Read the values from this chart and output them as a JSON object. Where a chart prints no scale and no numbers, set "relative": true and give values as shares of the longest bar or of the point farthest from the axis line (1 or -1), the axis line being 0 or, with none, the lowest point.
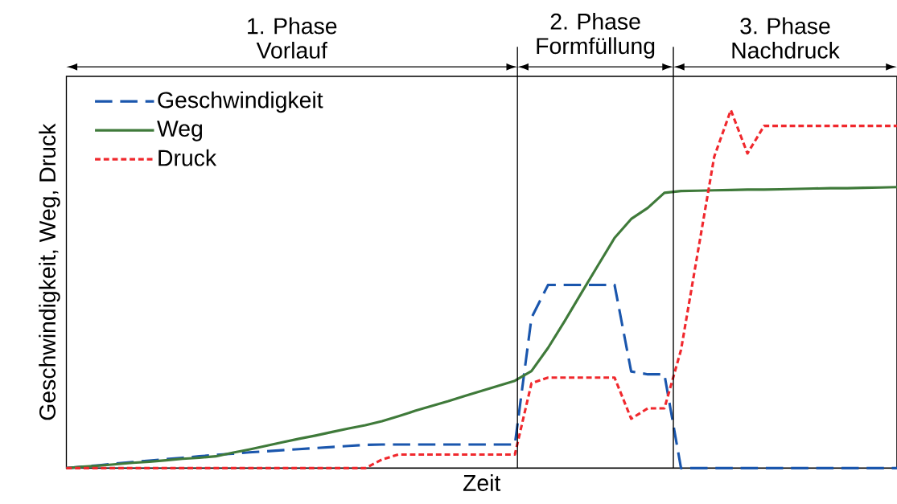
{
  "chart_data": {
    "type": "line",
    "relative": true,
    "xlabel": "Zeit",
    "ylabel": "Geschwindigkeit, Weg, Druck",
    "categories": [
      null,
      null,
      null,
      null,
      null,
      null,
      null,
      null,
      null,
      null,
      null,
      null,
      null,
      null,
      null,
      null,
      null,
      null,
      null,
      null,
      null,
      null,
      null,
      null,
      null,
      null,
      null,
      null,
      null,
      null,
      null,
      null,
      null,
      null,
      null,
      null,
      null,
      null,
      null,
      null,
      null,
      null,
      null,
      null,
      null,
      null,
      null,
      null,
      null,
      null,
      null
    ],
    "series": [
      {
        "name": "Geschwindigkeit",
        "color": "#1a56ad",
        "line_style": "dashed",
        "values": [
          0,
          0.004,
          0.008,
          0.013,
          0.017,
          0.021,
          0.025,
          0.029,
          0.033,
          0.037,
          0.04,
          0.044,
          0.047,
          0.05,
          0.053,
          0.056,
          0.059,
          0.062,
          0.065,
          0.066,
          0.066,
          0.066,
          0.066,
          0.066,
          0.066,
          0.066,
          0.066,
          0.066,
          0.42,
          0.512,
          0.512,
          0.512,
          0.512,
          0.512,
          0.27,
          0.262,
          0.262,
          0,
          0,
          0,
          0,
          0,
          0,
          0,
          0,
          0,
          0,
          0,
          0,
          0,
          0
        ]
      },
      {
        "name": "Weg",
        "color": "#3f7a3a",
        "line_style": "solid",
        "values": [
          0,
          0.004,
          0.007,
          0.011,
          0.015,
          0.018,
          0.022,
          0.026,
          0.029,
          0.033,
          0.043,
          0.052,
          0.062,
          0.072,
          0.082,
          0.091,
          0.101,
          0.111,
          0.12,
          0.131,
          0.145,
          0.16,
          0.174,
          0.187,
          0.202,
          0.216,
          0.23,
          0.244,
          0.271,
          0.336,
          0.411,
          0.489,
          0.566,
          0.643,
          0.696,
          0.727,
          0.769,
          0.774,
          0.775,
          0.776,
          0.777,
          0.778,
          0.778,
          0.779,
          0.78,
          0.781,
          0.782,
          0.782,
          0.783,
          0.784,
          0.785
        ]
      },
      {
        "name": "Druck",
        "color": "#f0282d",
        "line_style": "dotted",
        "values": [
          0,
          0,
          0,
          0,
          0,
          0,
          0,
          0,
          0,
          0,
          0,
          0,
          0,
          0,
          0,
          0,
          0,
          0,
          0,
          0.024,
          0.038,
          0.038,
          0.038,
          0.038,
          0.038,
          0.038,
          0.038,
          0.038,
          0.237,
          0.253,
          0.253,
          0.253,
          0.253,
          0.253,
          0.138,
          0.167,
          0.167,
          0.33,
          0.6,
          0.87,
          1,
          0.879,
          0.956,
          0.956,
          0.956,
          0.956,
          0.956,
          0.956,
          0.956,
          0.956,
          0.956
        ]
      }
    ],
    "annotations": [
      "1. Phase Vorlauf",
      "2. Phase Formfüllung",
      "3. Phase Nachdruck"
    ],
    "legend": "top left"
  }
}
